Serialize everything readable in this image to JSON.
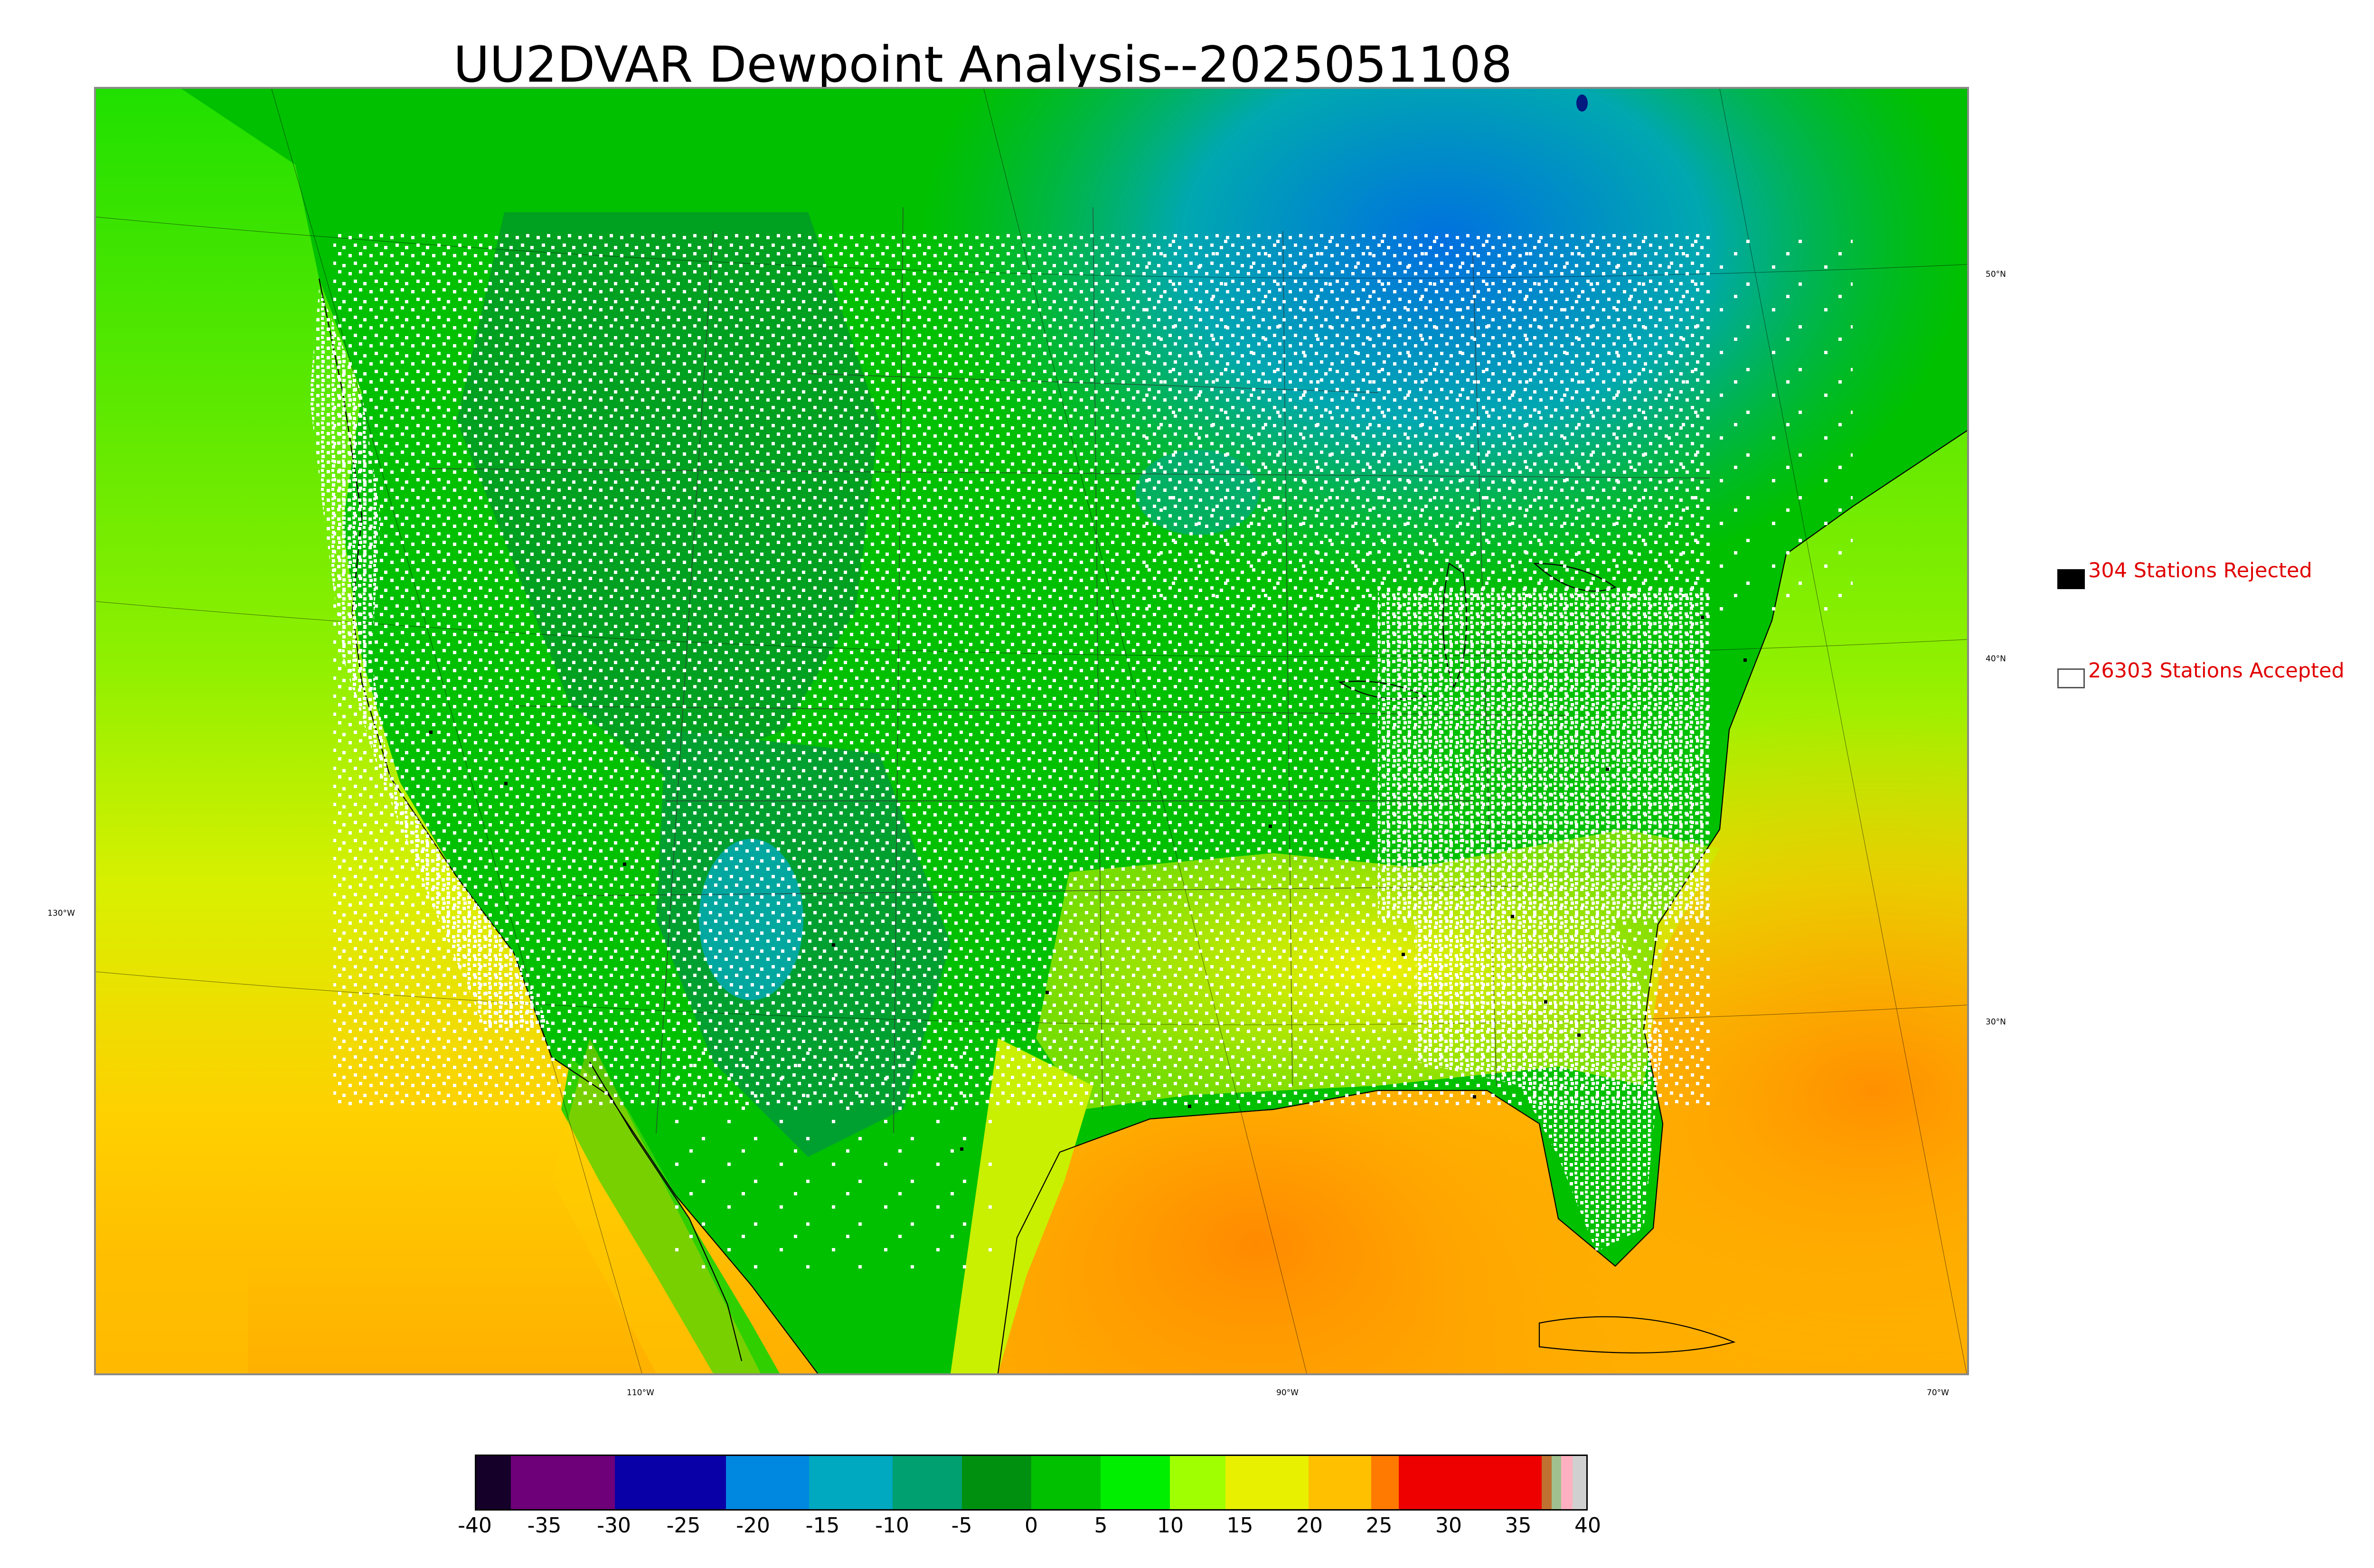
{
  "title": "UU2DVAR Dewpoint Analysis--2025051108",
  "map": {
    "lat_labels": [
      "50°N",
      "40°N",
      "30°N"
    ],
    "lon_labels": [
      "130°W",
      "110°W",
      "90°W",
      "70°W"
    ]
  },
  "legend": {
    "rejected": {
      "label": "304 Stations Rejected",
      "count": 304,
      "color": "#000000"
    },
    "accepted": {
      "label": "26303 Stations Accepted",
      "count": 26303,
      "color": "#ffffff"
    }
  },
  "colorbar": {
    "ticks": [
      "-40",
      "-35",
      "-30",
      "-25",
      "-20",
      "-15",
      "-10",
      "-5",
      "0",
      "5",
      "10",
      "15",
      "20",
      "25",
      "30",
      "35",
      "40"
    ],
    "range": [
      -40,
      40
    ],
    "segments": [
      {
        "from": -40,
        "to": -37.5,
        "color": "#15002a"
      },
      {
        "from": -37.5,
        "to": -30,
        "color": "#6e007a"
      },
      {
        "from": -30,
        "to": -22,
        "color": "#0a00a8"
      },
      {
        "from": -22,
        "to": -16,
        "color": "#0088e0"
      },
      {
        "from": -16,
        "to": -10,
        "color": "#00a8c0"
      },
      {
        "from": -10,
        "to": -5,
        "color": "#00a070"
      },
      {
        "from": -5,
        "to": 0,
        "color": "#009010"
      },
      {
        "from": 0,
        "to": 5,
        "color": "#00c000"
      },
      {
        "from": 5,
        "to": 10,
        "color": "#00ee00"
      },
      {
        "from": 10,
        "to": 14,
        "color": "#a0ff00"
      },
      {
        "from": 14,
        "to": 20,
        "color": "#e8f000"
      },
      {
        "from": 20,
        "to": 24.5,
        "color": "#ffc000"
      },
      {
        "from": 24.5,
        "to": 26.5,
        "color": "#ff7a00"
      },
      {
        "from": 26.5,
        "to": 36.8,
        "color": "#ee0000"
      },
      {
        "from": 36.8,
        "to": 37.5,
        "color": "#c07030"
      },
      {
        "from": 37.5,
        "to": 38.2,
        "color": "#a0c090"
      },
      {
        "from": 38.2,
        "to": 39,
        "color": "#ffb0c0"
      },
      {
        "from": 39,
        "to": 40,
        "color": "#d0d0d0"
      }
    ]
  },
  "colors": {
    "ocean_warm": "#ffa000",
    "ocean_mid": "#d8f000",
    "land_green": "#00c800",
    "dry_blue": "#00a0a8",
    "coast_line": "#000000"
  }
}
